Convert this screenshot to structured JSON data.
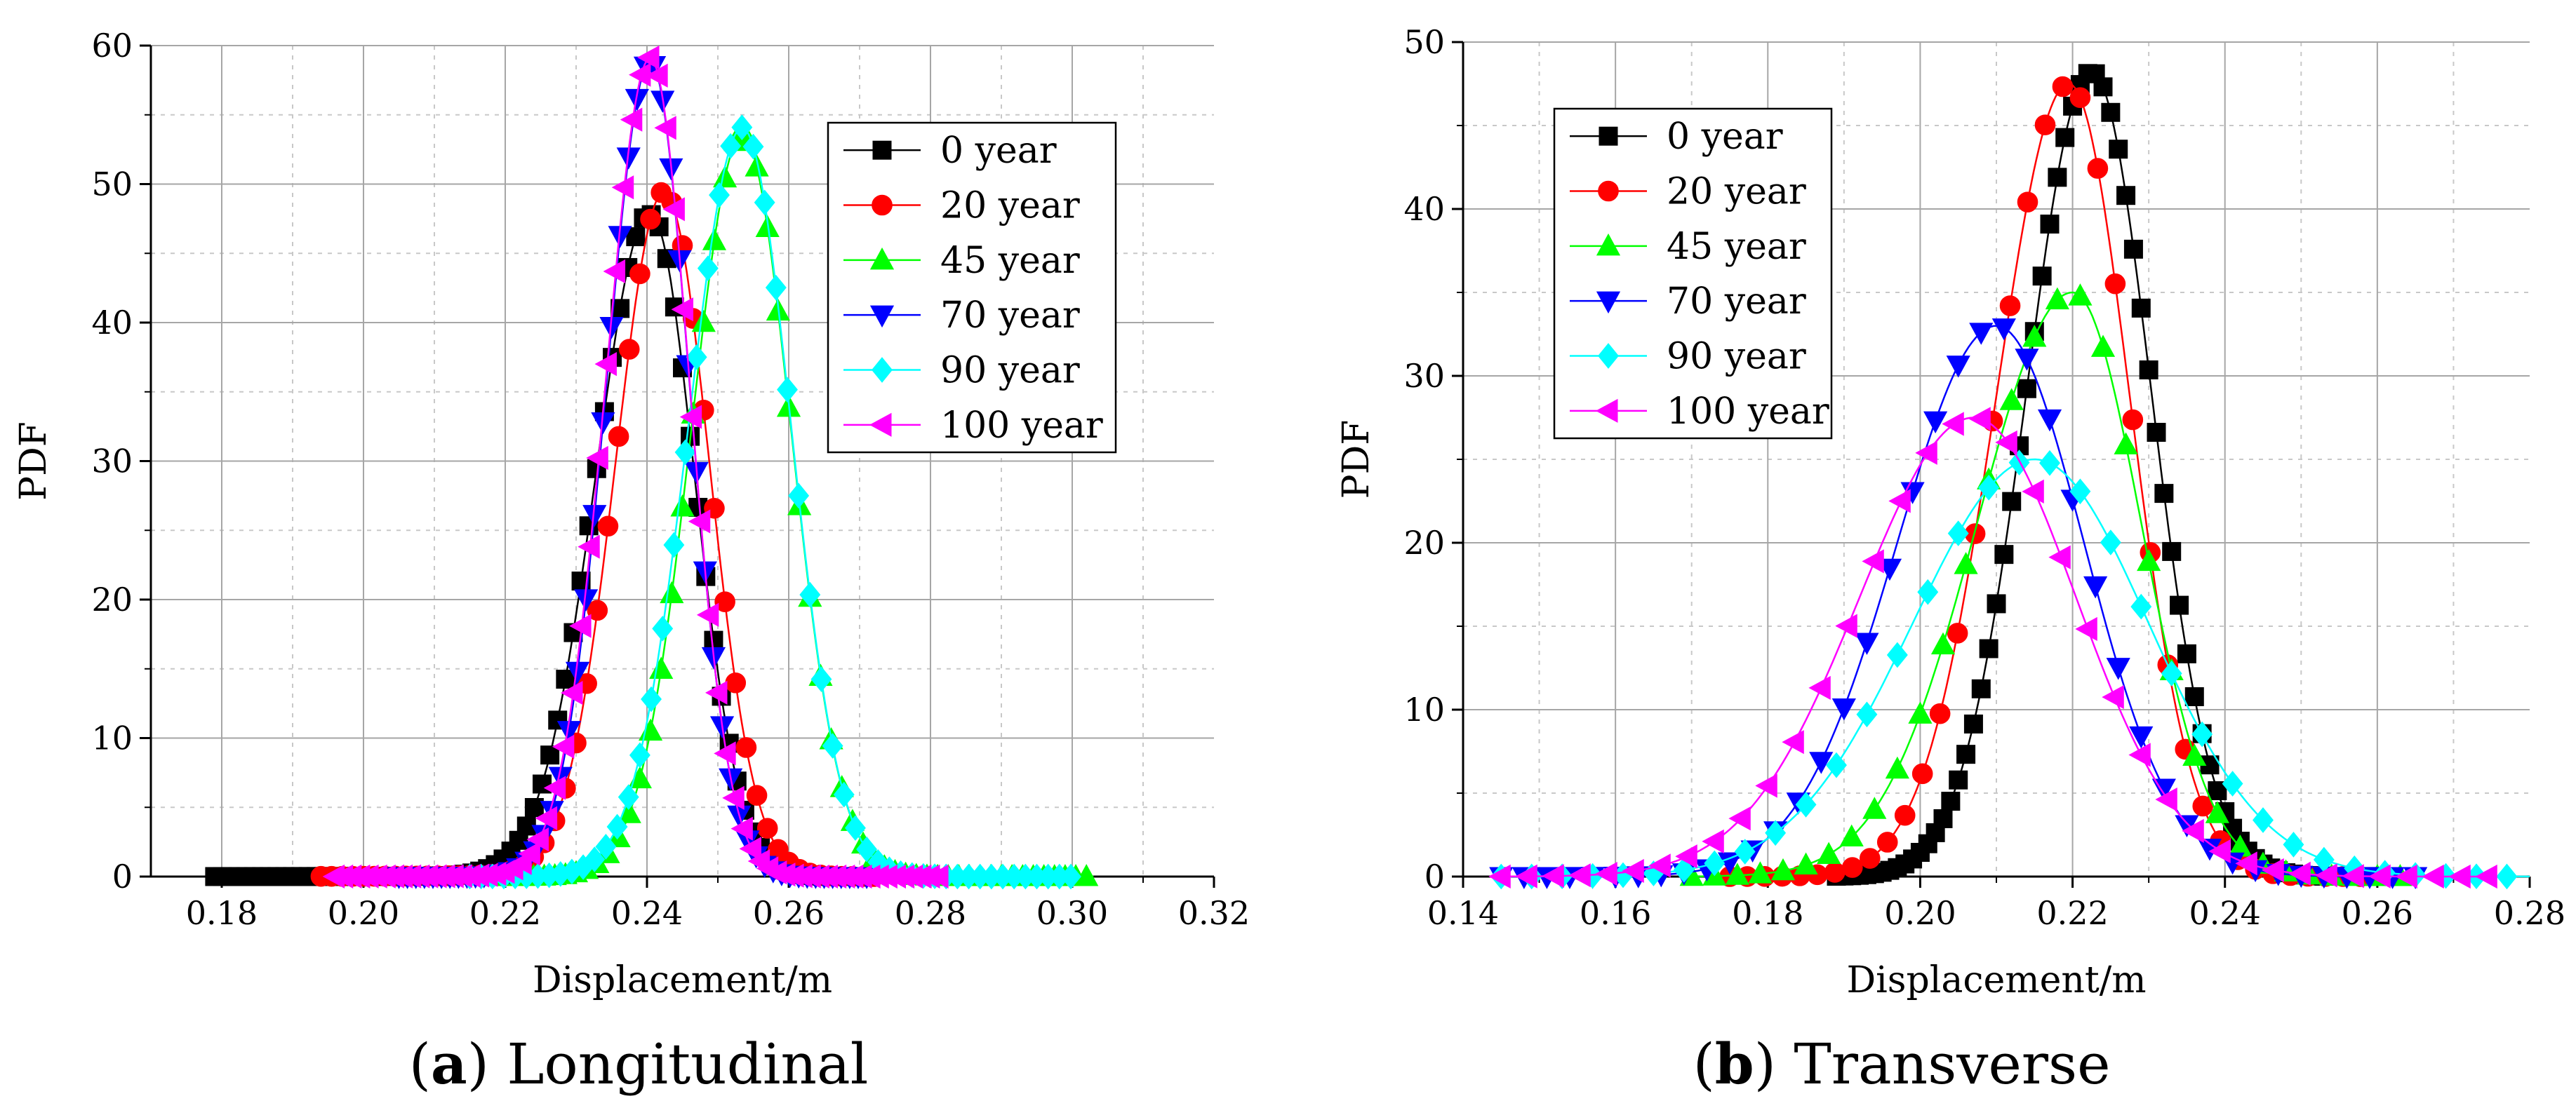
{
  "chart_data": [
    {
      "type": "line",
      "panel": "a",
      "caption_label": "a",
      "caption_text": " Longitudinal",
      "xlabel": "Displacement/m",
      "ylabel": "PDF",
      "xlim": [
        0.17,
        0.32
      ],
      "ylim": [
        0,
        60
      ],
      "xticks": [
        0.18,
        0.2,
        0.22,
        0.24,
        0.26,
        0.28,
        0.3,
        0.32
      ],
      "xtick_labels": [
        "0.18",
        "0.20",
        "0.22",
        "0.24",
        "0.26",
        "0.28",
        "0.30",
        "0.32"
      ],
      "yticks": [
        0,
        10,
        20,
        30,
        40,
        50,
        60
      ],
      "ytick_labels": [
        "0",
        "10",
        "20",
        "30",
        "40",
        "50",
        "60"
      ],
      "grid": true,
      "legend_position": "top-right",
      "series": [
        {
          "name": "0 year",
          "color": "#000000",
          "marker": "square",
          "params": {
            "mode": 0.2405,
            "sigma_left": 0.0077,
            "sigma_right": 0.0062,
            "peak": 47.8,
            "tail_amp": 0.35,
            "tail_scale": 0.011,
            "x_start": 0.179,
            "x_end": 0.268,
            "marker_step": 0.0011
          }
        },
        {
          "name": "20 year",
          "color": "#ff0000",
          "marker": "circle",
          "params": {
            "mode": 0.2425,
            "sigma_left": 0.0069,
            "sigma_right": 0.0063,
            "peak": 49.3,
            "tail_amp": 0.45,
            "tail_scale": 0.014,
            "x_start": 0.194,
            "x_end": 0.272,
            "marker_step": 0.0015
          }
        },
        {
          "name": "45 year",
          "color": "#00ff00",
          "marker": "triangle-up",
          "params": {
            "mode": 0.2535,
            "sigma_left": 0.0072,
            "sigma_right": 0.0068,
            "peak": 53.5,
            "tail_amp": 0.2,
            "tail_scale": 0.008,
            "x_start": 0.218,
            "x_end": 0.303,
            "marker_step": 0.0015
          }
        },
        {
          "name": "70 year",
          "color": "#0000ff",
          "marker": "triangle-down",
          "params": {
            "mode": 0.2405,
            "sigma_left": 0.0062,
            "sigma_right": 0.0055,
            "peak": 58.8,
            "tail_amp": 0.2,
            "tail_scale": 0.008,
            "x_start": 0.205,
            "x_end": 0.272,
            "marker_step": 0.0012
          }
        },
        {
          "name": "90 year",
          "color": "#00ffff",
          "marker": "diamond",
          "params": {
            "mode": 0.2535,
            "sigma_left": 0.0076,
            "sigma_right": 0.0068,
            "peak": 54.0,
            "tail_amp": 0.2,
            "tail_scale": 0.008,
            "x_start": 0.215,
            "x_end": 0.301,
            "marker_step": 0.0016
          }
        },
        {
          "name": "100 year",
          "color": "#ff00ff",
          "marker": "triangle-left",
          "params": {
            "mode": 0.2405,
            "sigma_left": 0.0063,
            "sigma_right": 0.0055,
            "peak": 59.0,
            "tail_amp": 0.3,
            "tail_scale": 0.011,
            "x_start": 0.196,
            "x_end": 0.282,
            "marker_step": 0.0012
          }
        }
      ]
    },
    {
      "type": "line",
      "panel": "b",
      "caption_label": "b",
      "caption_text": " Transverse",
      "xlabel": "Displacement/m",
      "ylabel": "PDF",
      "xlim": [
        0.14,
        0.28
      ],
      "ylim": [
        0,
        50
      ],
      "xticks": [
        0.14,
        0.16,
        0.18,
        0.2,
        0.22,
        0.24,
        0.26,
        0.28
      ],
      "xtick_labels": [
        "0.14",
        "0.16",
        "0.18",
        "0.20",
        "0.22",
        "0.24",
        "0.26",
        "0.28"
      ],
      "yticks": [
        0,
        10,
        20,
        30,
        40,
        50
      ],
      "ytick_labels": [
        "0",
        "10",
        "20",
        "30",
        "40",
        "50"
      ],
      "grid": true,
      "legend_position": "top-left",
      "series": [
        {
          "name": "0 year",
          "color": "#000000",
          "marker": "square",
          "params": {
            "mode": 0.2225,
            "sigma_left": 0.0085,
            "sigma_right": 0.0078,
            "peak": 48.2,
            "tail_amp": 0,
            "tail_scale": 0.01,
            "x_start": 0.189,
            "x_end": 0.253,
            "marker_step": 0.001
          }
        },
        {
          "name": "20 year",
          "color": "#ff0000",
          "marker": "circle",
          "params": {
            "mode": 0.2195,
            "sigma_left": 0.0095,
            "sigma_right": 0.008,
            "peak": 47.5,
            "tail_amp": 0,
            "tail_scale": 0.01,
            "x_start": 0.175,
            "x_end": 0.258,
            "marker_step": 0.0023
          }
        },
        {
          "name": "45 year",
          "color": "#00ff00",
          "marker": "triangle-up",
          "params": {
            "mode": 0.22,
            "sigma_left": 0.0125,
            "sigma_right": 0.009,
            "peak": 35.0,
            "tail_amp": 0,
            "tail_scale": 0.01,
            "x_start": 0.17,
            "x_end": 0.265,
            "marker_step": 0.003
          }
        },
        {
          "name": "70 year",
          "color": "#0000ff",
          "marker": "triangle-down",
          "params": {
            "mode": 0.21,
            "sigma_left": 0.013,
            "sigma_right": 0.0115,
            "peak": 33.0,
            "tail_amp": 0,
            "tail_scale": 0.01,
            "x_start": 0.145,
            "x_end": 0.265,
            "marker_step": 0.003
          }
        },
        {
          "name": "90 year",
          "color": "#00ffff",
          "marker": "diamond",
          "params": {
            "mode": 0.215,
            "sigma_left": 0.016,
            "sigma_right": 0.015,
            "peak": 25.0,
            "tail_amp": 0,
            "tail_scale": 0.01,
            "x_start": 0.145,
            "x_end": 0.28,
            "marker_step": 0.004
          }
        },
        {
          "name": "100 year",
          "color": "#ff00ff",
          "marker": "triangle-left",
          "params": {
            "mode": 0.207,
            "sigma_left": 0.015,
            "sigma_right": 0.0135,
            "peak": 27.5,
            "tail_amp": 0,
            "tail_scale": 0.01,
            "x_start": 0.145,
            "x_end": 0.275,
            "marker_step": 0.0035
          }
        }
      ]
    }
  ]
}
